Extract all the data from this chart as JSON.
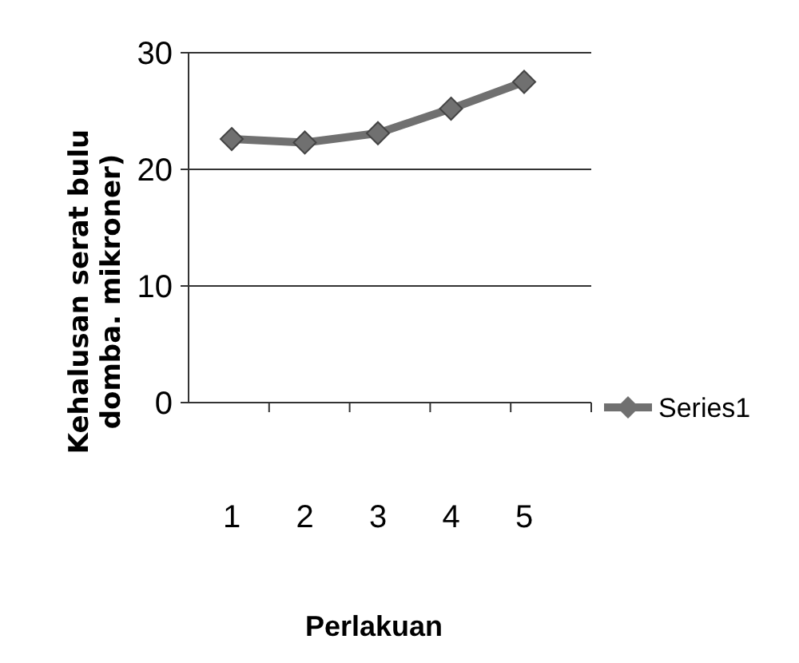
{
  "chart_data": {
    "type": "line",
    "ylabel": "Kehalusan serat bulu\ndomba. mikroner)",
    "xlabel": "Perlakuan",
    "categories": [
      "1",
      "2",
      "3",
      "4",
      "5"
    ],
    "series": [
      {
        "name": "Series1",
        "color": "#707070",
        "values": [
          22.6,
          22.3,
          23.1,
          25.2,
          27.5
        ]
      }
    ],
    "ylim": [
      0,
      30
    ],
    "yticks": [
      0,
      10,
      20,
      30
    ],
    "grid": "y",
    "legend": "right",
    "marker": "diamond",
    "line_style": "solid"
  }
}
